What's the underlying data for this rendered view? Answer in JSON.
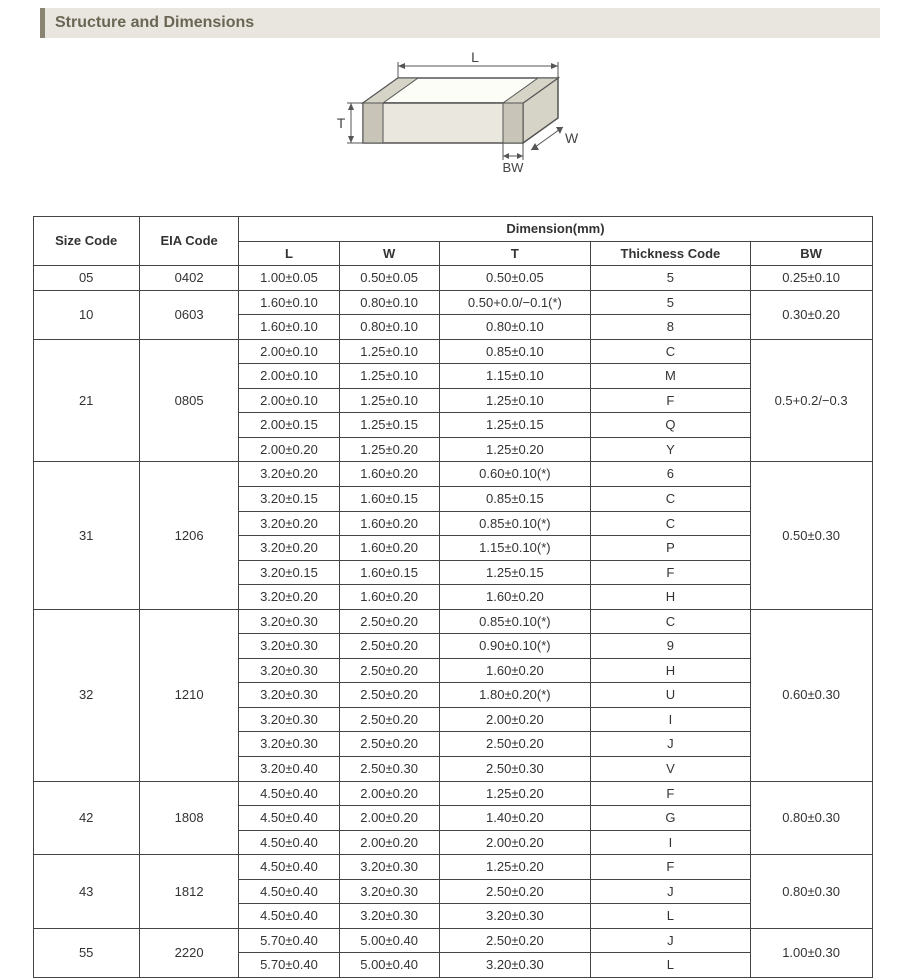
{
  "section_title": "Structure and Dimensions",
  "diagram": {
    "labels": {
      "L": "L",
      "W": "W",
      "T": "T",
      "BW": "BW"
    },
    "stroke_color": "#555555",
    "fill_light": "#fdfdf8",
    "fill_mid": "#e9e7de",
    "fill_dark": "#d6d3c7"
  },
  "table": {
    "header_group": "Dimension(mm)",
    "columns": {
      "size_code": "Size Code",
      "eia_code": "EIA Code",
      "L": "L",
      "W": "W",
      "T": "T",
      "thickness_code": "Thickness Code",
      "BW": "BW"
    },
    "groups": [
      {
        "size_code": "05",
        "eia_code": "0402",
        "bw": "0.25±0.10",
        "rows": [
          {
            "L": "1.00±0.05",
            "W": "0.50±0.05",
            "T": "0.50±0.05",
            "tc": "5"
          }
        ]
      },
      {
        "size_code": "10",
        "eia_code": "0603",
        "bw": "0.30±0.20",
        "rows": [
          {
            "L": "1.60±0.10",
            "W": "0.80±0.10",
            "T": "0.50+0.0/−0.1(*)",
            "tc": "5"
          },
          {
            "L": "1.60±0.10",
            "W": "0.80±0.10",
            "T": "0.80±0.10",
            "tc": "8"
          }
        ]
      },
      {
        "size_code": "21",
        "eia_code": "0805",
        "bw": "0.5+0.2/−0.3",
        "rows": [
          {
            "L": "2.00±0.10",
            "W": "1.25±0.10",
            "T": "0.85±0.10",
            "tc": "C"
          },
          {
            "L": "2.00±0.10",
            "W": "1.25±0.10",
            "T": "1.15±0.10",
            "tc": "M"
          },
          {
            "L": "2.00±0.10",
            "W": "1.25±0.10",
            "T": "1.25±0.10",
            "tc": "F"
          },
          {
            "L": "2.00±0.15",
            "W": "1.25±0.15",
            "T": "1.25±0.15",
            "tc": "Q"
          },
          {
            "L": "2.00±0.20",
            "W": "1.25±0.20",
            "T": "1.25±0.20",
            "tc": "Y"
          }
        ]
      },
      {
        "size_code": "31",
        "eia_code": "1206",
        "bw": "0.50±0.30",
        "rows": [
          {
            "L": "3.20±0.20",
            "W": "1.60±0.20",
            "T": "0.60±0.10(*)",
            "tc": "6"
          },
          {
            "L": "3.20±0.15",
            "W": "1.60±0.15",
            "T": "0.85±0.15",
            "tc": "C"
          },
          {
            "L": "3.20±0.20",
            "W": "1.60±0.20",
            "T": "0.85±0.10(*)",
            "tc": "C"
          },
          {
            "L": "3.20±0.20",
            "W": "1.60±0.20",
            "T": "1.15±0.10(*)",
            "tc": "P"
          },
          {
            "L": "3.20±0.15",
            "W": "1.60±0.15",
            "T": "1.25±0.15",
            "tc": "F"
          },
          {
            "L": "3.20±0.20",
            "W": "1.60±0.20",
            "T": "1.60±0.20",
            "tc": "H"
          }
        ]
      },
      {
        "size_code": "32",
        "eia_code": "1210",
        "bw": "0.60±0.30",
        "rows": [
          {
            "L": "3.20±0.30",
            "W": "2.50±0.20",
            "T": "0.85±0.10(*)",
            "tc": "C"
          },
          {
            "L": "3.20±0.30",
            "W": "2.50±0.20",
            "T": "0.90±0.10(*)",
            "tc": "9"
          },
          {
            "L": "3.20±0.30",
            "W": "2.50±0.20",
            "T": "1.60±0.20",
            "tc": "H"
          },
          {
            "L": "3.20±0.30",
            "W": "2.50±0.20",
            "T": "1.80±0.20(*)",
            "tc": "U"
          },
          {
            "L": "3.20±0.30",
            "W": "2.50±0.20",
            "T": "2.00±0.20",
            "tc": "I"
          },
          {
            "L": "3.20±0.30",
            "W": "2.50±0.20",
            "T": "2.50±0.20",
            "tc": "J"
          },
          {
            "L": "3.20±0.40",
            "W": "2.50±0.30",
            "T": "2.50±0.30",
            "tc": "V"
          }
        ]
      },
      {
        "size_code": "42",
        "eia_code": "1808",
        "bw": "0.80±0.30",
        "rows": [
          {
            "L": "4.50±0.40",
            "W": "2.00±0.20",
            "T": "1.25±0.20",
            "tc": "F"
          },
          {
            "L": "4.50±0.40",
            "W": "2.00±0.20",
            "T": "1.40±0.20",
            "tc": "G"
          },
          {
            "L": "4.50±0.40",
            "W": "2.00±0.20",
            "T": "2.00±0.20",
            "tc": "I"
          }
        ]
      },
      {
        "size_code": "43",
        "eia_code": "1812",
        "bw": "0.80±0.30",
        "rows": [
          {
            "L": "4.50±0.40",
            "W": "3.20±0.30",
            "T": "1.25±0.20",
            "tc": "F"
          },
          {
            "L": "4.50±0.40",
            "W": "3.20±0.30",
            "T": "2.50±0.20",
            "tc": "J"
          },
          {
            "L": "4.50±0.40",
            "W": "3.20±0.30",
            "T": "3.20±0.30",
            "tc": "L"
          }
        ]
      },
      {
        "size_code": "55",
        "eia_code": "2220",
        "bw": "1.00±0.30",
        "rows": [
          {
            "L": "5.70±0.40",
            "W": "5.00±0.40",
            "T": "2.50±0.20",
            "tc": "J"
          },
          {
            "L": "5.70±0.40",
            "W": "5.00±0.40",
            "T": "3.20±0.30",
            "tc": "L"
          }
        ]
      }
    ]
  }
}
